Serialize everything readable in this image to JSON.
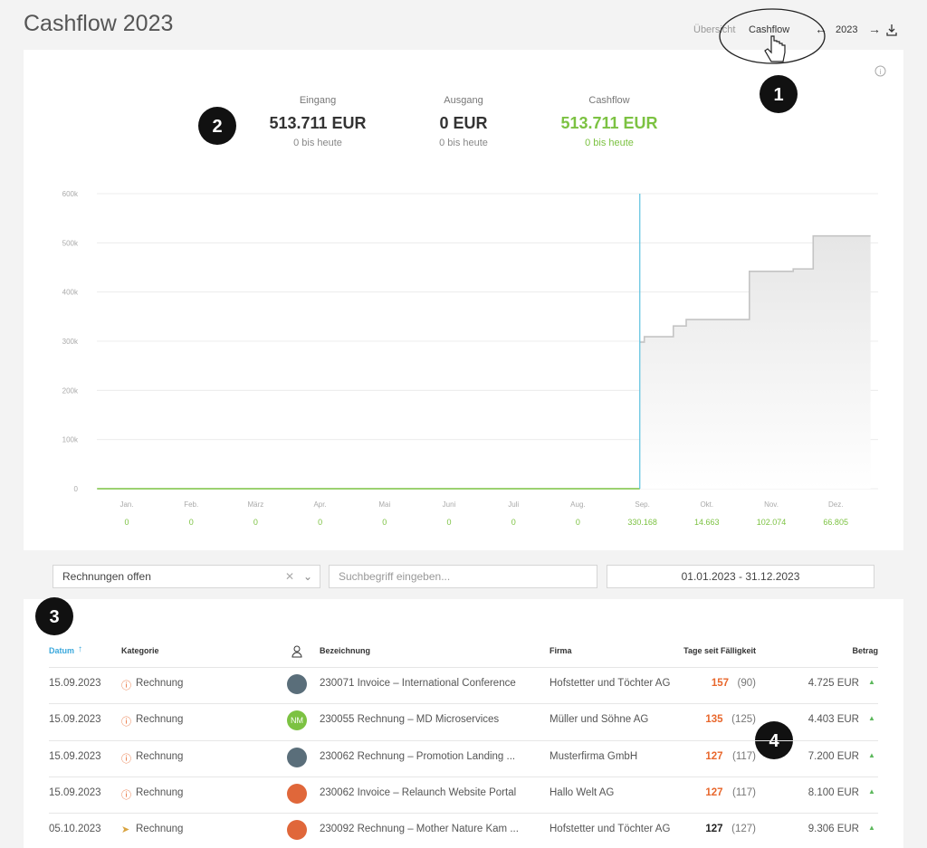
{
  "header": {
    "title": "Cashflow 2023",
    "tabs": [
      "Übersicht",
      "Cashflow"
    ],
    "year": "2023"
  },
  "annotations": [
    "1",
    "2",
    "3",
    "4"
  ],
  "summary": [
    {
      "label": "Eingang",
      "value": "513.711 EUR",
      "sub": "0 bis heute",
      "color": "#333333"
    },
    {
      "label": "Ausgang",
      "value": "0 EUR",
      "sub": "0 bis heute",
      "color": "#333333"
    },
    {
      "label": "Cashflow",
      "value": "513.711 EUR",
      "sub": "0 bis heute",
      "color": "#7cc242"
    }
  ],
  "chart_data": {
    "type": "line",
    "categories": [
      "Jan.",
      "Feb.",
      "März",
      "Apr.",
      "Mai",
      "Juni",
      "Juli",
      "Aug.",
      "Sep.",
      "Okt.",
      "Nov.",
      "Dez."
    ],
    "values": [
      0,
      0,
      0,
      0,
      0,
      0,
      0,
      0,
      330168,
      14663,
      102074,
      66805
    ],
    "value_labels": [
      "0",
      "0",
      "0",
      "0",
      "0",
      "0",
      "0",
      "0",
      "330.168",
      "14.663",
      "102.074",
      "66.805"
    ],
    "value_color": "#7cc242",
    "ylim": [
      0,
      600000
    ],
    "yticks": [
      0,
      {
        "value": 100000,
        "label": "100k"
      },
      {
        "value": 200000,
        "label": "200k"
      },
      {
        "value": 300000,
        "label": "300k"
      },
      {
        "value": 400000,
        "label": "400k"
      },
      {
        "value": 500000,
        "label": "500k"
      },
      {
        "value": 600000,
        "label": "600k"
      }
    ],
    "xlim": [
      -0.5,
      11.5
    ],
    "grid": true,
    "step": true,
    "marker_x": 7.96,
    "marker_color": "#5bc0de",
    "series": [
      {
        "color": "#7cc242",
        "x": [
          -0.46,
          7.96
        ],
        "values": [
          0,
          0
        ]
      },
      {
        "color": "#c4c4c4",
        "area": true,
        "x": [
          7.96,
          8.03,
          8.48,
          8.68,
          9.66,
          10.34,
          10.65,
          11.54
        ],
        "values": [
          298000,
          309000,
          331000,
          344000,
          442000,
          447000,
          514000,
          514000
        ]
      }
    ]
  },
  "filters": {
    "select": "Rechnungen offen",
    "search": "Suchbegriff eingeben...",
    "range": "01.01.2023 - 31.12.2023"
  },
  "table": {
    "headers": [
      "Datum",
      "Kategorie",
      "Bezeichnung",
      "Firma",
      "Tage seit Fälligkeit",
      "Betrag"
    ],
    "rows": [
      {
        "date": "15.09.2023",
        "category": "Rechnung",
        "avatar": "#5a6e7a",
        "title": "230071 Invoice – International Conference",
        "company": "Hofstetter und Töchter AG",
        "days": "157",
        "due": "(90)",
        "days_color": "#e8672c",
        "amount": "4.725 EUR"
      },
      {
        "date": "15.09.2023",
        "category": "Rechnung",
        "avatar": "#7cc242",
        "initials": "NM",
        "title": "230055 Rechnung – MD Microservices",
        "company": "Müller und Söhne AG",
        "days": "135",
        "due": "(125)",
        "days_color": "#e8672c",
        "amount": "4.403 EUR"
      },
      {
        "date": "15.09.2023",
        "category": "Rechnung",
        "avatar": "#5a6e7a",
        "title": "230062 Rechnung – Promotion Landing ...",
        "company": "Musterfirma GmbH",
        "days": "127",
        "due": "(117)",
        "days_color": "#e8672c",
        "amount": "7.200 EUR"
      },
      {
        "date": "15.09.2023",
        "category": "Rechnung",
        "avatar": "#e0673a",
        "title": "230062 Invoice – Relaunch Website Portal",
        "company": "Hallo Welt AG",
        "days": "127",
        "due": "(117)",
        "days_color": "#e8672c",
        "amount": "8.100 EUR"
      },
      {
        "date": "05.10.2023",
        "category": "Rechnung",
        "avatar": "#e0673a",
        "title": "230092 Rechnung – Mother Nature Kam ...",
        "company": "Hofstetter und Töchter AG",
        "days": "127",
        "due": "(127)",
        "days_color": "#222222",
        "amount": "9.306 EUR"
      }
    ]
  }
}
